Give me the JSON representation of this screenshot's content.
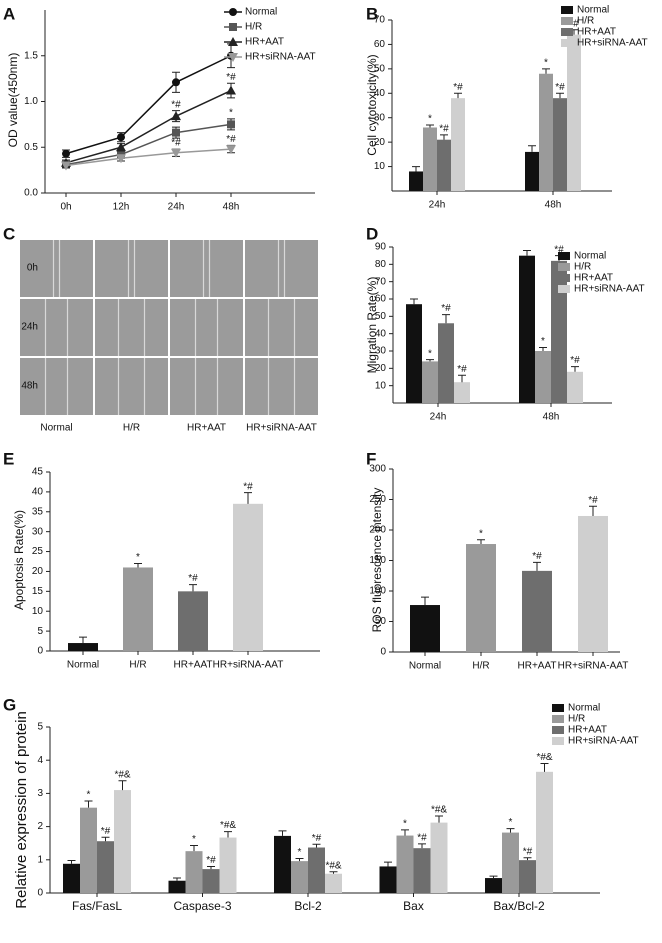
{
  "chart_data": [
    {
      "type": "line",
      "panel": "A",
      "y_label": "OD value(450nm)",
      "categories": [
        "0h",
        "12h",
        "24h",
        "48h"
      ],
      "ylim": [
        0,
        2
      ],
      "yticks": [
        {
          "value": 0,
          "label": "0.0"
        },
        0.5,
        {
          "value": 1,
          "label": "1.0"
        },
        1.5
      ],
      "series": [
        {
          "name": "Normal",
          "color": "#111111",
          "marker": "circle",
          "values": [
            0.43,
            0.61,
            1.21,
            1.5
          ],
          "errors": [
            0.04,
            0.05,
            0.11,
            0.13
          ]
        },
        {
          "name": "H/R",
          "color": "#555555",
          "marker": "square",
          "values": [
            0.31,
            0.42,
            0.66,
            0.75
          ],
          "errors": [
            0.03,
            0.04,
            0.06,
            0.06
          ],
          "annotations": [
            null,
            null,
            "*",
            "*"
          ]
        },
        {
          "name": "HR+AAT",
          "color": "#222222",
          "marker": "triangle",
          "values": [
            0.33,
            0.5,
            0.84,
            1.12
          ],
          "errors": [
            0.03,
            0.04,
            0.06,
            0.08
          ],
          "annotations": [
            null,
            null,
            "*#",
            "*#"
          ]
        },
        {
          "name": "HR+siRNA-AAT",
          "color": "#999999",
          "marker": "triangle-down",
          "values": [
            0.3,
            0.38,
            0.44,
            0.48
          ],
          "errors": [
            0.02,
            0.03,
            0.04,
            0.04
          ],
          "annotations": [
            null,
            null,
            "*#",
            "*#"
          ]
        }
      ]
    },
    {
      "type": "bar",
      "panel": "B",
      "y_label": "Cell cytotoxicity(%)",
      "categories": [
        "24h",
        "48h"
      ],
      "ylim": [
        0,
        70
      ],
      "yticks": [
        10,
        20,
        30,
        40,
        50,
        60,
        70
      ],
      "series": [
        {
          "name": "Normal",
          "color": "#111111",
          "values": [
            8,
            16
          ],
          "errors": [
            2,
            2.5
          ]
        },
        {
          "name": "H/R",
          "color": "#9a9a9a",
          "values": [
            26,
            48
          ],
          "errors": [
            1,
            2
          ],
          "annotations": [
            "*",
            "*"
          ]
        },
        {
          "name": "HR+AAT",
          "color": "#6e6e6e",
          "values": [
            21,
            38
          ],
          "errors": [
            2,
            2
          ],
          "annotations": [
            "*#",
            "*#"
          ]
        },
        {
          "name": "HR+siRNA-AAT",
          "color": "#cfcfcf",
          "values": [
            38,
            64
          ],
          "errors": [
            2,
            2
          ],
          "annotations": [
            "*#",
            "*#"
          ]
        }
      ]
    },
    {
      "type": "grid",
      "panel": "C",
      "rows": [
        "0h",
        "24h",
        "48h"
      ],
      "columns": [
        "Normal",
        "H/R",
        "HR+AAT",
        "HR+siRNA-AAT"
      ]
    },
    {
      "type": "bar",
      "panel": "D",
      "y_label": "Migration Rate(%)",
      "categories": [
        "24h",
        "48h"
      ],
      "ylim": [
        0,
        90
      ],
      "yticks": [
        10,
        20,
        30,
        40,
        50,
        60,
        70,
        80,
        90
      ],
      "series": [
        {
          "name": "Normal",
          "color": "#111111",
          "values": [
            57,
            85
          ],
          "errors": [
            3,
            3
          ]
        },
        {
          "name": "H/R",
          "color": "#9a9a9a",
          "values": [
            24,
            30
          ],
          "errors": [
            1,
            2
          ],
          "annotations": [
            "*",
            "*"
          ]
        },
        {
          "name": "HR+AAT",
          "color": "#6e6e6e",
          "values": [
            46,
            82
          ],
          "errors": [
            5,
            3
          ],
          "annotations": [
            "*#",
            "*#"
          ]
        },
        {
          "name": "HR+siRNA-AAT",
          "color": "#cfcfcf",
          "values": [
            12,
            18
          ],
          "errors": [
            4,
            3
          ],
          "annotations": [
            "*#",
            "*#"
          ]
        }
      ]
    },
    {
      "type": "bar",
      "panel": "E",
      "y_label": "Apoptosis Rate(%)",
      "categories": [
        "Normal",
        "H/R",
        "HR+AAT",
        "HR+siRNA-AAT"
      ],
      "ylim": [
        0,
        45
      ],
      "yticks": [
        0,
        5,
        10,
        15,
        20,
        25,
        30,
        35,
        40,
        45
      ],
      "values": [
        2,
        21,
        15,
        37
      ],
      "errors": [
        1.5,
        1,
        1.7,
        2.8
      ],
      "colors": [
        "#111111",
        "#9a9a9a",
        "#6e6e6e",
        "#cfcfcf"
      ],
      "annotations": [
        null,
        "*",
        "*#",
        "*#"
      ]
    },
    {
      "type": "bar",
      "panel": "F",
      "y_label": "ROS fluorescence intensity",
      "categories": [
        "Normal",
        "H/R",
        "HR+AAT",
        "HR+siRNA-AAT"
      ],
      "ylim": [
        0,
        300
      ],
      "yticks": [
        0,
        50,
        100,
        150,
        200,
        250,
        300
      ],
      "values": [
        77,
        177,
        133,
        223
      ],
      "errors": [
        13,
        7,
        14,
        16
      ],
      "colors": [
        "#111111",
        "#9a9a9a",
        "#6e6e6e",
        "#cfcfcf"
      ],
      "annotations": [
        null,
        "*",
        "*#",
        "*#"
      ]
    },
    {
      "type": "bar",
      "panel": "G",
      "y_label": "Relative expression of protein",
      "categories": [
        "Fas/FasL",
        "Caspase-3",
        "Bcl-2",
        "Bax",
        "Bax/Bcl-2"
      ],
      "ylim": [
        0,
        5
      ],
      "yticks": [
        0,
        1,
        2,
        3,
        4,
        5
      ],
      "series": [
        {
          "name": "Normal",
          "color": "#111111",
          "values": [
            0.88,
            0.37,
            1.72,
            0.8,
            0.45
          ],
          "errors": [
            0.1,
            0.08,
            0.15,
            0.13,
            0.06
          ]
        },
        {
          "name": "H/R",
          "color": "#9a9a9a",
          "values": [
            2.57,
            1.26,
            0.96,
            1.73,
            1.82
          ],
          "errors": [
            0.2,
            0.17,
            0.08,
            0.17,
            0.12
          ],
          "annotations": [
            "*",
            "*",
            "*",
            "*",
            "*"
          ]
        },
        {
          "name": "HR+AAT",
          "color": "#6e6e6e",
          "values": [
            1.56,
            0.72,
            1.37,
            1.35,
            0.99
          ],
          "errors": [
            0.12,
            0.08,
            0.1,
            0.13,
            0.07
          ],
          "annotations": [
            "*#",
            "*#",
            "*#",
            "*#",
            "*#"
          ]
        },
        {
          "name": "HR+siRNA-AAT",
          "color": "#cfcfcf",
          "values": [
            3.1,
            1.67,
            0.58,
            2.12,
            3.65
          ],
          "errors": [
            0.28,
            0.18,
            0.06,
            0.2,
            0.25
          ],
          "annotations": [
            "*#&",
            "*#&",
            "*#&",
            "*#&",
            "*#&"
          ]
        }
      ]
    }
  ]
}
